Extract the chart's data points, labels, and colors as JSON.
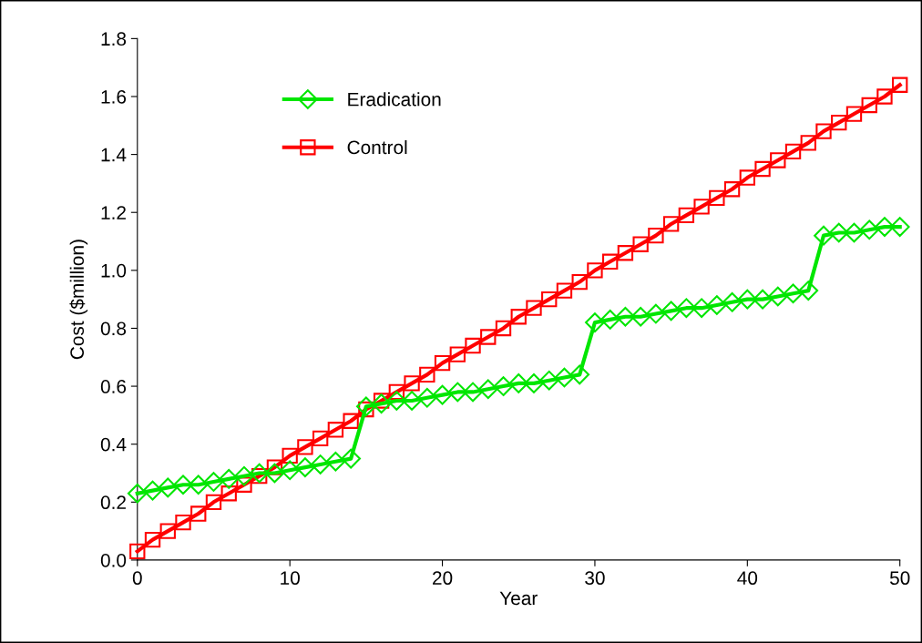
{
  "chart_data": {
    "type": "line",
    "xlabel": "Year",
    "ylabel": "Cost ($million)",
    "x": [
      0,
      1,
      2,
      3,
      4,
      5,
      6,
      7,
      8,
      9,
      10,
      11,
      12,
      13,
      14,
      15,
      16,
      17,
      18,
      19,
      20,
      21,
      22,
      23,
      24,
      25,
      26,
      27,
      28,
      29,
      30,
      31,
      32,
      33,
      34,
      35,
      36,
      37,
      38,
      39,
      40,
      41,
      42,
      43,
      44,
      45,
      46,
      47,
      48,
      49,
      50
    ],
    "series": [
      {
        "name": "Eradication",
        "color": "#00e600",
        "marker": "diamond",
        "values": [
          0.23,
          0.24,
          0.25,
          0.26,
          0.26,
          0.27,
          0.28,
          0.29,
          0.3,
          0.3,
          0.31,
          0.32,
          0.33,
          0.34,
          0.35,
          0.53,
          0.54,
          0.55,
          0.55,
          0.56,
          0.57,
          0.58,
          0.58,
          0.59,
          0.6,
          0.61,
          0.61,
          0.62,
          0.63,
          0.64,
          0.82,
          0.83,
          0.84,
          0.84,
          0.85,
          0.86,
          0.87,
          0.87,
          0.88,
          0.89,
          0.9,
          0.9,
          0.91,
          0.92,
          0.93,
          1.12,
          1.13,
          1.13,
          1.14,
          1.15,
          1.15
        ]
      },
      {
        "name": "Control",
        "color": "#ff0000",
        "marker": "square",
        "values": [
          0.03,
          0.07,
          0.1,
          0.13,
          0.16,
          0.2,
          0.23,
          0.26,
          0.29,
          0.32,
          0.36,
          0.39,
          0.42,
          0.45,
          0.48,
          0.52,
          0.55,
          0.58,
          0.61,
          0.64,
          0.68,
          0.71,
          0.74,
          0.77,
          0.8,
          0.84,
          0.87,
          0.9,
          0.93,
          0.96,
          1.0,
          1.03,
          1.06,
          1.09,
          1.12,
          1.16,
          1.19,
          1.22,
          1.25,
          1.28,
          1.32,
          1.35,
          1.38,
          1.41,
          1.44,
          1.48,
          1.51,
          1.54,
          1.57,
          1.6,
          1.64
        ]
      }
    ],
    "xlim": [
      0,
      50
    ],
    "xticks": [
      0,
      10,
      20,
      30,
      40,
      50
    ],
    "ylim": [
      0,
      1.8
    ],
    "yticks": [
      {
        "value": 0,
        "label": "0.0"
      },
      {
        "value": 0.2,
        "label": "0.2"
      },
      {
        "value": 0.4,
        "label": "0.4"
      },
      {
        "value": 0.6,
        "label": "0.6"
      },
      {
        "value": 0.8,
        "label": "0.8"
      },
      {
        "value": 1.0,
        "label": "1.0"
      },
      {
        "value": 1.2,
        "label": "1.2"
      },
      {
        "value": 1.4,
        "label": "1.4"
      },
      {
        "value": 1.6,
        "label": "1.6"
      },
      {
        "value": 1.8,
        "label": "1.8"
      }
    ],
    "grid": false,
    "legend": "top left",
    "line_style": "solid"
  }
}
